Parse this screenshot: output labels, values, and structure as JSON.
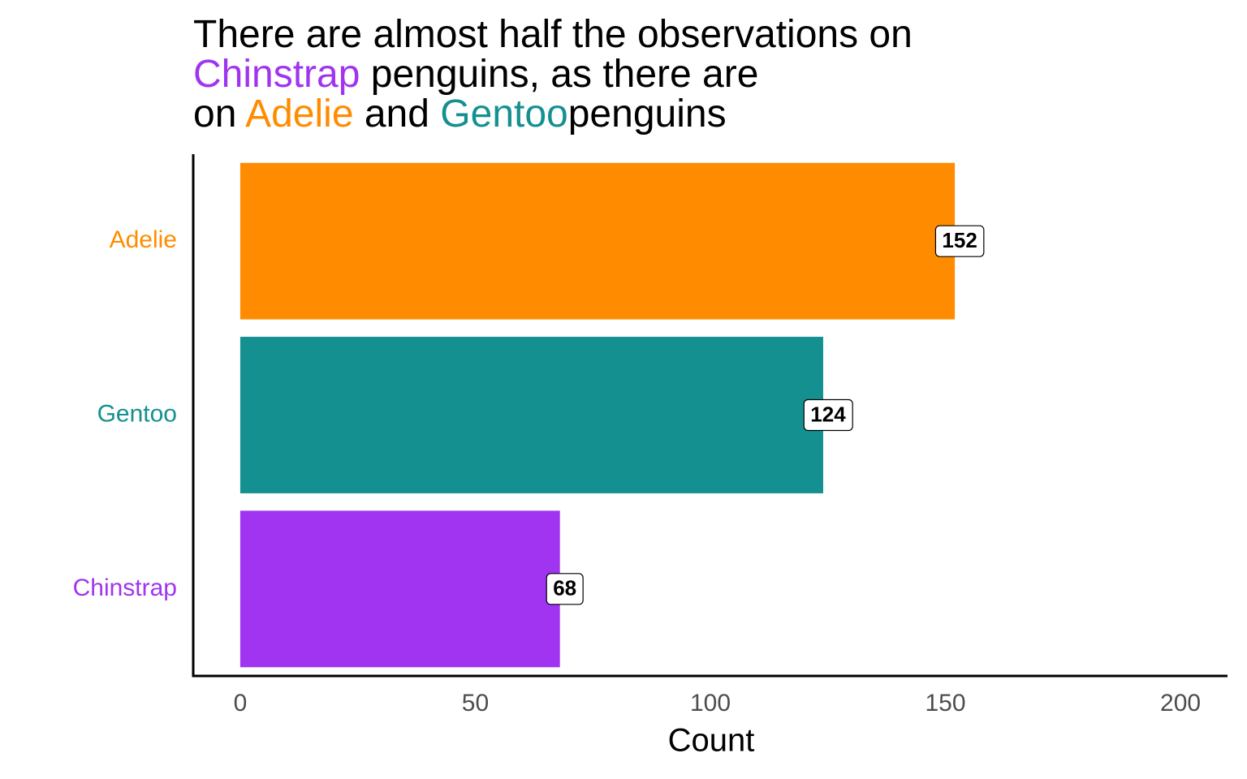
{
  "chart_data": {
    "type": "barh",
    "title_lines": [
      [
        {
          "text": "There are almost half the observations on",
          "color": "#000000"
        }
      ],
      [
        {
          "text": "Chinstrap",
          "color": "#A034F0"
        },
        {
          "text": " penguins, as there are",
          "color": "#000000"
        }
      ],
      [
        {
          "text": "on ",
          "color": "#000000"
        },
        {
          "text": "Adelie",
          "color": "#FF8C00"
        },
        {
          "text": " and ",
          "color": "#000000"
        },
        {
          "text": "Gentoo",
          "color": "#159090"
        },
        {
          "text": "penguins",
          "color": "#000000"
        }
      ]
    ],
    "categories": [
      "Adelie",
      "Gentoo",
      "Chinstrap"
    ],
    "values": [
      152,
      124,
      68
    ],
    "colors": [
      "#FF8C00",
      "#159090",
      "#A034F0"
    ],
    "xlabel": "Count",
    "xlim": [
      -10,
      210
    ],
    "xticks": [
      0,
      50,
      100,
      150,
      200
    ],
    "grid": false
  }
}
